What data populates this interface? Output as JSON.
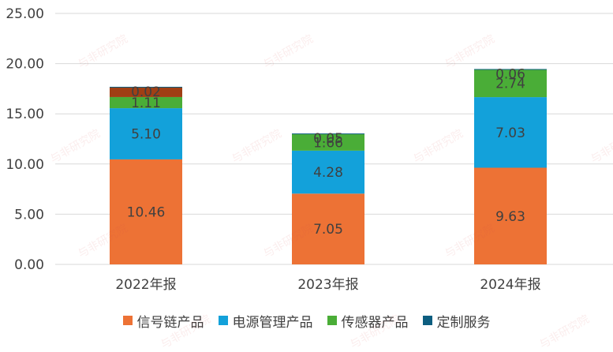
{
  "chart_data": {
    "type": "bar",
    "stacked": true,
    "categories": [
      "2022年报",
      "2023年报",
      "2024年报"
    ],
    "series": [
      {
        "name": "信号链产品",
        "color": "#ED7235",
        "values": [
          10.46,
          7.05,
          9.63
        ]
      },
      {
        "name": "电源管理产品",
        "color": "#13A1DA",
        "values": [
          5.1,
          4.28,
          7.03
        ]
      },
      {
        "name": "传感器产品",
        "color": "#4AAD37",
        "values": [
          1.11,
          1.66,
          2.74
        ]
      },
      {
        "name": "",
        "color": "#A03F14",
        "values": [
          1.0,
          0,
          0
        ]
      },
      {
        "name": "定制服务",
        "color": "#0D5E80",
        "values": [
          0.02,
          0.05,
          0.06
        ]
      }
    ],
    "data_labels": [
      [
        "10.46",
        "5.10",
        "1.11",
        "",
        "0.02"
      ],
      [
        "7.05",
        "4.28",
        "1.66",
        "",
        "0.05"
      ],
      [
        "9.63",
        "7.03",
        "2.74",
        "",
        "0.06"
      ]
    ],
    "ylim": [
      0,
      25
    ],
    "yticks": [
      "0.00",
      "5.00",
      "10.00",
      "15.00",
      "20.00",
      "25.00"
    ],
    "grid": true,
    "legend_position": "bottom"
  },
  "watermark_text": "与非研究院"
}
